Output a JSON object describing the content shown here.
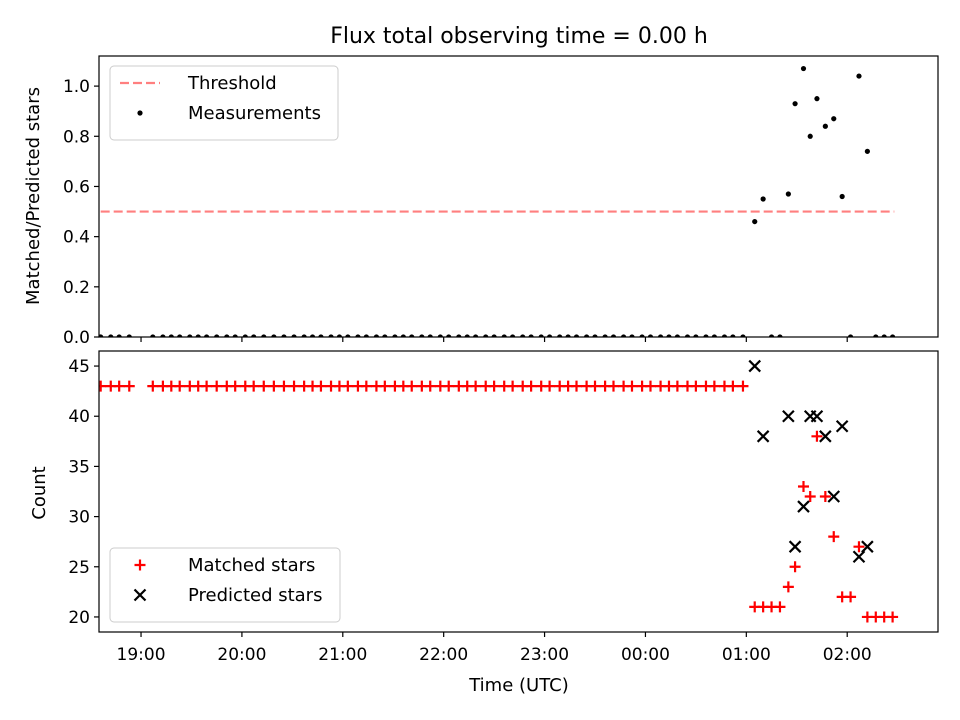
{
  "chart_data": [
    {
      "type": "scatter",
      "title": "Flux total observing time = 0.00 h",
      "xlabel": "",
      "ylabel": "Matched/Predicted stars",
      "ylim": [
        0,
        1.12
      ],
      "yticks": [
        "0.0",
        "0.2",
        "0.4",
        "0.6",
        "0.8",
        "1.0"
      ],
      "xlim": [
        "18:35",
        "02:54"
      ],
      "legend": {
        "placement": "top-left",
        "entries": [
          "Threshold",
          "Measurements"
        ]
      },
      "grid": false,
      "threshold": {
        "name": "Threshold",
        "value": 0.5,
        "x_start": "18:36",
        "x_end": "02:28",
        "color": "#ff7f7f",
        "style": "dashed"
      },
      "series": [
        {
          "name": "Measurements",
          "color": "#000000",
          "points": [
            [
              "18:36",
              0.0
            ],
            [
              "18:42",
              0.0
            ],
            [
              "18:47",
              0.0
            ],
            [
              "18:53",
              0.0
            ],
            [
              "19:07",
              0.0
            ],
            [
              "19:13",
              0.0
            ],
            [
              "19:18",
              0.0
            ],
            [
              "19:23",
              0.0
            ],
            [
              "19:29",
              0.0
            ],
            [
              "19:34",
              0.0
            ],
            [
              "19:39",
              0.0
            ],
            [
              "19:45",
              0.0
            ],
            [
              "19:51",
              0.0
            ],
            [
              "19:56",
              0.0
            ],
            [
              "20:02",
              0.0
            ],
            [
              "20:07",
              0.0
            ],
            [
              "20:13",
              0.0
            ],
            [
              "20:19",
              0.0
            ],
            [
              "20:25",
              0.0
            ],
            [
              "20:31",
              0.0
            ],
            [
              "20:37",
              0.0
            ],
            [
              "20:42",
              0.0
            ],
            [
              "20:47",
              0.0
            ],
            [
              "20:53",
              0.0
            ],
            [
              "20:58",
              0.0
            ],
            [
              "21:03",
              0.0
            ],
            [
              "21:09",
              0.0
            ],
            [
              "21:14",
              0.0
            ],
            [
              "21:20",
              0.0
            ],
            [
              "21:25",
              0.0
            ],
            [
              "21:31",
              0.0
            ],
            [
              "21:36",
              0.0
            ],
            [
              "21:41",
              0.0
            ],
            [
              "21:47",
              0.0
            ],
            [
              "21:52",
              0.0
            ],
            [
              "21:58",
              0.0
            ],
            [
              "22:03",
              0.0
            ],
            [
              "22:09",
              0.0
            ],
            [
              "22:14",
              0.0
            ],
            [
              "22:19",
              0.0
            ],
            [
              "22:25",
              0.0
            ],
            [
              "22:30",
              0.0
            ],
            [
              "22:36",
              0.0
            ],
            [
              "22:41",
              0.0
            ],
            [
              "22:47",
              0.0
            ],
            [
              "22:52",
              0.0
            ],
            [
              "22:58",
              0.0
            ],
            [
              "23:03",
              0.0
            ],
            [
              "23:09",
              0.0
            ],
            [
              "23:14",
              0.0
            ],
            [
              "23:19",
              0.0
            ],
            [
              "23:25",
              0.0
            ],
            [
              "23:30",
              0.0
            ],
            [
              "23:36",
              0.0
            ],
            [
              "23:41",
              0.0
            ],
            [
              "23:47",
              0.0
            ],
            [
              "23:52",
              0.0
            ],
            [
              "23:58",
              0.0
            ],
            [
              "00:03",
              0.0
            ],
            [
              "00:09",
              0.0
            ],
            [
              "00:14",
              0.0
            ],
            [
              "00:19",
              0.0
            ],
            [
              "00:25",
              0.0
            ],
            [
              "00:30",
              0.0
            ],
            [
              "00:36",
              0.0
            ],
            [
              "00:41",
              0.0
            ],
            [
              "00:47",
              0.0
            ],
            [
              "00:52",
              0.0
            ],
            [
              "00:58",
              0.0
            ],
            [
              "01:05",
              0.46
            ],
            [
              "01:10",
              0.55
            ],
            [
              "01:15",
              0.0
            ],
            [
              "01:20",
              0.0
            ],
            [
              "01:25",
              0.57
            ],
            [
              "01:29",
              0.93
            ],
            [
              "01:34",
              1.07
            ],
            [
              "01:38",
              0.8
            ],
            [
              "01:42",
              0.95
            ],
            [
              "01:47",
              0.84
            ],
            [
              "01:52",
              0.87
            ],
            [
              "01:57",
              0.56
            ],
            [
              "02:02",
              0.0
            ],
            [
              "02:07",
              1.04
            ],
            [
              "02:12",
              0.74
            ],
            [
              "02:17",
              0.0
            ],
            [
              "02:22",
              0.0
            ],
            [
              "02:27",
              0.0
            ]
          ]
        }
      ]
    },
    {
      "type": "scatter",
      "title": "",
      "xlabel": "Time (UTC)",
      "ylabel": "Count",
      "ylim": [
        18.5,
        46.5
      ],
      "yticks": [
        "20",
        "25",
        "30",
        "35",
        "40",
        "45"
      ],
      "xlim": [
        "18:35",
        "02:54"
      ],
      "xticks": [
        "19:00",
        "20:00",
        "21:00",
        "22:00",
        "23:00",
        "00:00",
        "01:00",
        "02:00"
      ],
      "legend": {
        "placement": "bottom-left",
        "entries": [
          "Matched stars",
          "Predicted stars"
        ]
      },
      "grid": false,
      "series": [
        {
          "name": "Matched stars",
          "color": "#ff0000",
          "marker": "plus",
          "points": [
            [
              "18:36",
              43
            ],
            [
              "18:42",
              43
            ],
            [
              "18:47",
              43
            ],
            [
              "18:53",
              43
            ],
            [
              "19:07",
              43
            ],
            [
              "19:13",
              43
            ],
            [
              "19:18",
              43
            ],
            [
              "19:23",
              43
            ],
            [
              "19:29",
              43
            ],
            [
              "19:34",
              43
            ],
            [
              "19:39",
              43
            ],
            [
              "19:45",
              43
            ],
            [
              "19:51",
              43
            ],
            [
              "19:56",
              43
            ],
            [
              "20:02",
              43
            ],
            [
              "20:07",
              43
            ],
            [
              "20:13",
              43
            ],
            [
              "20:19",
              43
            ],
            [
              "20:25",
              43
            ],
            [
              "20:31",
              43
            ],
            [
              "20:37",
              43
            ],
            [
              "20:42",
              43
            ],
            [
              "20:47",
              43
            ],
            [
              "20:53",
              43
            ],
            [
              "20:58",
              43
            ],
            [
              "21:03",
              43
            ],
            [
              "21:09",
              43
            ],
            [
              "21:14",
              43
            ],
            [
              "21:20",
              43
            ],
            [
              "21:25",
              43
            ],
            [
              "21:31",
              43
            ],
            [
              "21:36",
              43
            ],
            [
              "21:41",
              43
            ],
            [
              "21:47",
              43
            ],
            [
              "21:52",
              43
            ],
            [
              "21:58",
              43
            ],
            [
              "22:03",
              43
            ],
            [
              "22:09",
              43
            ],
            [
              "22:14",
              43
            ],
            [
              "22:19",
              43
            ],
            [
              "22:25",
              43
            ],
            [
              "22:30",
              43
            ],
            [
              "22:36",
              43
            ],
            [
              "22:41",
              43
            ],
            [
              "22:47",
              43
            ],
            [
              "22:52",
              43
            ],
            [
              "22:58",
              43
            ],
            [
              "23:03",
              43
            ],
            [
              "23:09",
              43
            ],
            [
              "23:14",
              43
            ],
            [
              "23:19",
              43
            ],
            [
              "23:25",
              43
            ],
            [
              "23:30",
              43
            ],
            [
              "23:36",
              43
            ],
            [
              "23:41",
              43
            ],
            [
              "23:47",
              43
            ],
            [
              "23:52",
              43
            ],
            [
              "23:58",
              43
            ],
            [
              "00:03",
              43
            ],
            [
              "00:09",
              43
            ],
            [
              "00:14",
              43
            ],
            [
              "00:19",
              43
            ],
            [
              "00:25",
              43
            ],
            [
              "00:30",
              43
            ],
            [
              "00:36",
              43
            ],
            [
              "00:41",
              43
            ],
            [
              "00:47",
              43
            ],
            [
              "00:52",
              43
            ],
            [
              "00:58",
              43
            ],
            [
              "01:05",
              21
            ],
            [
              "01:10",
              21
            ],
            [
              "01:15",
              21
            ],
            [
              "01:20",
              21
            ],
            [
              "01:25",
              23
            ],
            [
              "01:29",
              25
            ],
            [
              "01:34",
              33
            ],
            [
              "01:38",
              32
            ],
            [
              "01:42",
              38
            ],
            [
              "01:47",
              32
            ],
            [
              "01:52",
              28
            ],
            [
              "01:57",
              22
            ],
            [
              "02:02",
              22
            ],
            [
              "02:07",
              27
            ],
            [
              "02:12",
              20
            ],
            [
              "02:17",
              20
            ],
            [
              "02:22",
              20
            ],
            [
              "02:27",
              20
            ]
          ]
        },
        {
          "name": "Predicted stars",
          "color": "#000000",
          "marker": "x",
          "points": [
            [
              "01:05",
              45
            ],
            [
              "01:10",
              38
            ],
            [
              "01:25",
              40
            ],
            [
              "01:29",
              27
            ],
            [
              "01:34",
              31
            ],
            [
              "01:38",
              40
            ],
            [
              "01:42",
              40
            ],
            [
              "01:47",
              38
            ],
            [
              "01:52",
              32
            ],
            [
              "01:57",
              39
            ],
            [
              "02:07",
              26
            ],
            [
              "02:12",
              27
            ]
          ]
        }
      ]
    }
  ]
}
